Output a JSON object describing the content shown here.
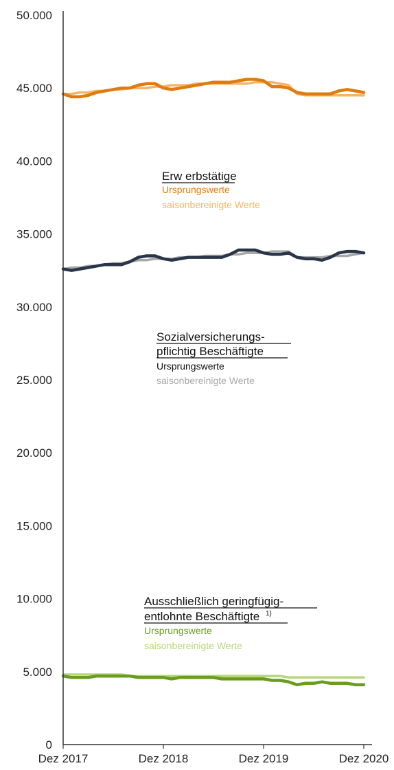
{
  "chart_data": {
    "type": "line",
    "ylim": [
      0,
      50000
    ],
    "yticks": [
      0,
      5000,
      10000,
      15000,
      20000,
      25000,
      30000,
      35000,
      40000,
      45000,
      50000
    ],
    "ytick_labels": [
      "0",
      "5.000",
      "10.000",
      "15.000",
      "20.000",
      "25.000",
      "30.000",
      "35.000",
      "40.000",
      "45.000",
      "50.000"
    ],
    "xtick_labels": [
      "Dez 2017",
      "Dez 2018",
      "Dez 2019",
      "Dez 2020"
    ],
    "x_count": 37,
    "xtick_positions": [
      0,
      12,
      24,
      36
    ],
    "annotations": [
      {
        "title": "Erw erbstätige",
        "sub": [
          {
            "text": "Ursprungswerte",
            "color": "#e07b10"
          },
          {
            "text": "saisonbereinigte Werte",
            "color": "#f5b566"
          }
        ]
      },
      {
        "title_lines": [
          "Sozialversicherungs-",
          "pflichtig Beschäftigte"
        ],
        "sub": [
          {
            "text": "Ursprungswerte",
            "color": "#111111"
          },
          {
            "text": "saisonbereinigte Werte",
            "color": "#a8a8a8"
          }
        ]
      },
      {
        "title_lines": [
          "Ausschließlich geringfügig-",
          "entlohnte Beschäftigte"
        ],
        "footnote": "1)",
        "sub": [
          {
            "text": "Ursprungswerte",
            "color": "#6a9c1f"
          },
          {
            "text": "saisonbereinigte Werte",
            "color": "#b7d77a"
          }
        ]
      }
    ],
    "series": [
      {
        "color": "#e07b10",
        "values": [
          44600,
          44400,
          44400,
          44500,
          44700,
          44800,
          44900,
          45000,
          45000,
          45200,
          45300,
          45300,
          45000,
          44900,
          45000,
          45100,
          45200,
          45300,
          45400,
          45400,
          45400,
          45500,
          45600,
          45600,
          45500,
          45100,
          45100,
          45000,
          44700,
          44600,
          44600,
          44600,
          44600,
          44800,
          44900,
          44800,
          44700
        ]
      },
      {
        "color": "#f5b566",
        "values": [
          44600,
          44600,
          44700,
          44700,
          44800,
          44800,
          44900,
          44900,
          45000,
          45000,
          45000,
          45100,
          45100,
          45200,
          45200,
          45200,
          45300,
          45300,
          45300,
          45300,
          45300,
          45300,
          45300,
          45400,
          45400,
          45400,
          45300,
          45200,
          44600,
          44500,
          44500,
          44500,
          44500,
          44500,
          44500,
          44500,
          44500
        ]
      },
      {
        "color": "#2a3548",
        "values": [
          32600,
          32500,
          32600,
          32700,
          32800,
          32900,
          32900,
          32900,
          33100,
          33400,
          33500,
          33500,
          33300,
          33200,
          33300,
          33400,
          33400,
          33400,
          33400,
          33400,
          33600,
          33900,
          33900,
          33900,
          33700,
          33600,
          33600,
          33700,
          33400,
          33300,
          33300,
          33200,
          33400,
          33700,
          33800,
          33800,
          33700
        ]
      },
      {
        "color": "#a8a8a8",
        "values": [
          32600,
          32700,
          32700,
          32800,
          32800,
          32900,
          33000,
          33000,
          33100,
          33200,
          33200,
          33300,
          33300,
          33300,
          33400,
          33400,
          33400,
          33500,
          33500,
          33500,
          33600,
          33600,
          33700,
          33700,
          33700,
          33800,
          33800,
          33800,
          33400,
          33400,
          33400,
          33400,
          33500,
          33500,
          33500,
          33600,
          33700
        ]
      },
      {
        "color": "#6a9c1f",
        "values": [
          4700,
          4600,
          4600,
          4600,
          4700,
          4700,
          4700,
          4700,
          4700,
          4600,
          4600,
          4600,
          4600,
          4500,
          4600,
          4600,
          4600,
          4600,
          4600,
          4500,
          4500,
          4500,
          4500,
          4500,
          4500,
          4400,
          4400,
          4300,
          4100,
          4200,
          4200,
          4300,
          4200,
          4200,
          4200,
          4100,
          4100
        ]
      },
      {
        "color": "#b7d77a",
        "values": [
          4800,
          4800,
          4800,
          4800,
          4800,
          4800,
          4800,
          4800,
          4700,
          4700,
          4700,
          4700,
          4700,
          4700,
          4700,
          4700,
          4700,
          4700,
          4700,
          4700,
          4700,
          4700,
          4700,
          4700,
          4700,
          4700,
          4700,
          4600,
          4600,
          4600,
          4600,
          4600,
          4600,
          4600,
          4600,
          4600,
          4600
        ]
      }
    ]
  }
}
